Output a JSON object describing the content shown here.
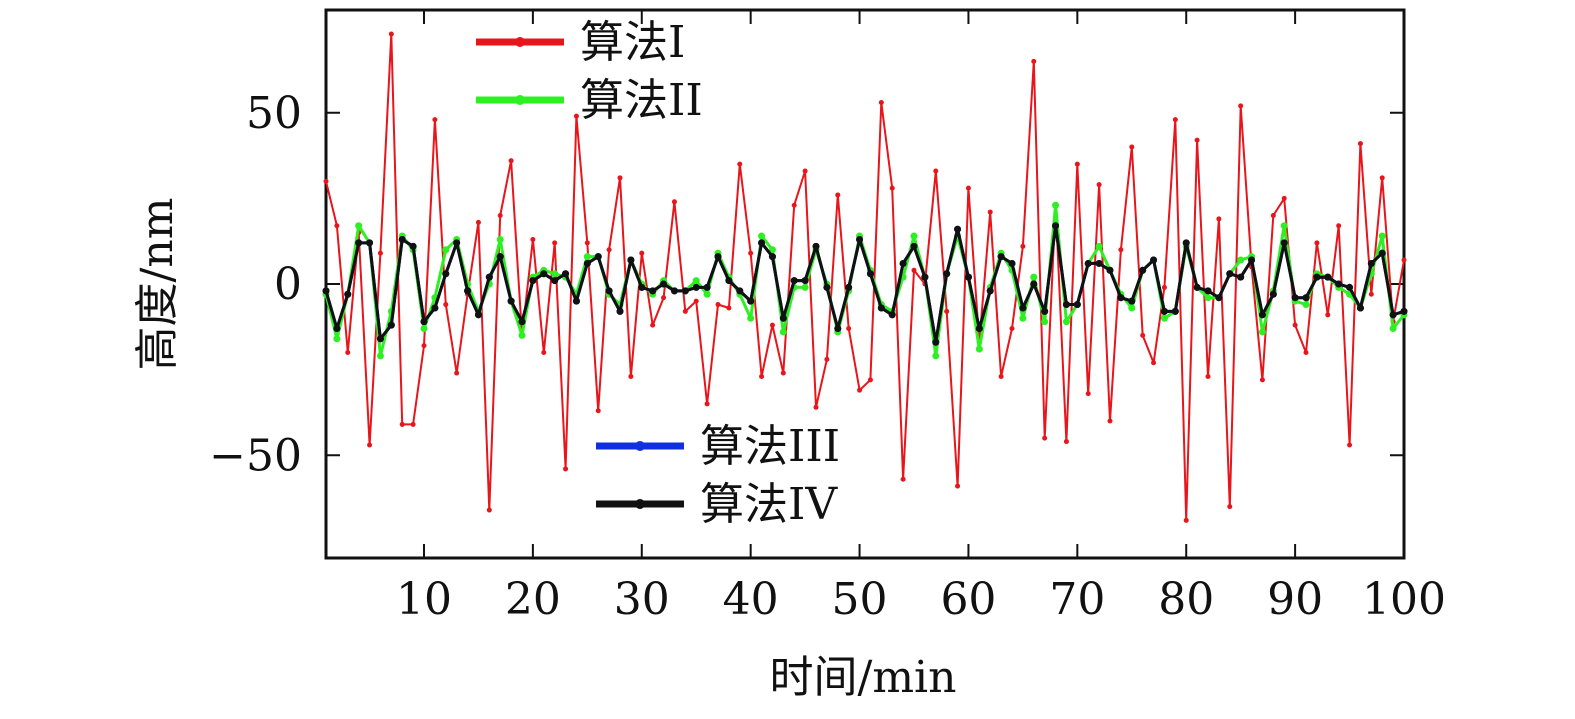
{
  "chart_data": {
    "type": "line",
    "xlabel": "时间/min",
    "ylabel": "高度/nm",
    "xlim": [
      1,
      100
    ],
    "ylim": [
      -80,
      80
    ],
    "xticks": [
      10,
      20,
      30,
      40,
      50,
      60,
      70,
      80,
      90,
      100
    ],
    "yticks": [
      -50,
      0,
      50
    ],
    "ytick_labels": [
      "−50",
      "0",
      "50"
    ],
    "grid": false,
    "x": [
      1,
      2,
      3,
      4,
      5,
      6,
      7,
      8,
      9,
      10,
      11,
      12,
      13,
      14,
      15,
      16,
      17,
      18,
      19,
      20,
      21,
      22,
      23,
      24,
      25,
      26,
      27,
      28,
      29,
      30,
      31,
      32,
      33,
      34,
      35,
      36,
      37,
      38,
      39,
      40,
      41,
      42,
      43,
      44,
      45,
      46,
      47,
      48,
      49,
      50,
      51,
      52,
      53,
      54,
      55,
      56,
      57,
      58,
      59,
      60,
      61,
      62,
      63,
      64,
      65,
      66,
      67,
      68,
      69,
      70,
      71,
      72,
      73,
      74,
      75,
      76,
      77,
      78,
      79,
      80,
      81,
      82,
      83,
      84,
      85,
      86,
      87,
      88,
      89,
      90,
      91,
      92,
      93,
      94,
      95,
      96,
      97,
      98,
      99,
      100
    ],
    "series": [
      {
        "name": "算法I",
        "color": "#e8151b",
        "width": 2,
        "values": [
          30,
          17,
          -20,
          15,
          -47,
          9,
          73,
          -41,
          -41,
          -18,
          48,
          -6,
          -26,
          -3,
          18,
          -66,
          20,
          36,
          -15,
          13,
          -20,
          12,
          -54,
          49,
          12,
          -37,
          10,
          31,
          -27,
          9,
          -12,
          -4,
          24,
          -8,
          -5,
          -35,
          -6,
          -7,
          35,
          9,
          -27,
          -12,
          -26,
          23,
          33,
          -36,
          -22,
          26,
          -13,
          -31,
          -28,
          53,
          28,
          -57,
          4,
          0,
          33,
          -8,
          -59,
          28,
          -17,
          21,
          -27,
          -13,
          11,
          65,
          -45,
          23,
          -46,
          35,
          -32,
          29,
          -40,
          10,
          40,
          -15,
          -23,
          -1,
          48,
          -69,
          42,
          -27,
          19,
          -65,
          52,
          5,
          -28,
          20,
          25,
          -12,
          -20,
          12,
          -9,
          17,
          -47,
          41,
          -3,
          31,
          -11,
          7
        ]
      },
      {
        "name": "算法II",
        "color": "#2df020",
        "width": 3,
        "values": [
          -3,
          -16,
          -3,
          17,
          12,
          -21,
          -8,
          14,
          10,
          -13,
          -4,
          10,
          13,
          0,
          -8,
          0,
          13,
          -5,
          -15,
          2,
          4,
          3,
          2,
          -3,
          8,
          8,
          -3,
          -6,
          7,
          0,
          -3,
          1,
          -2,
          -2,
          1,
          -3,
          9,
          2,
          -3,
          -10,
          14,
          10,
          -14,
          -1,
          -1,
          10,
          0,
          -14,
          -2,
          14,
          4,
          -6,
          -8,
          2,
          14,
          2,
          -21,
          3,
          14,
          2,
          -19,
          -1,
          9,
          4,
          -10,
          2,
          -11,
          23,
          -11,
          -6,
          6,
          11,
          4,
          -3,
          -7,
          4,
          7,
          -10,
          -8,
          11,
          -1,
          -4,
          -4,
          3,
          7,
          8,
          -14,
          -2,
          17,
          -5,
          -6,
          3,
          2,
          -1,
          -3,
          -7,
          3,
          14,
          -13,
          -9
        ]
      },
      {
        "name": "算法III",
        "color": "#1030e0",
        "width": 3,
        "values": [
          -2,
          -13,
          -3,
          12,
          12,
          -16,
          -12,
          13,
          11,
          -11,
          -7,
          3,
          12,
          -2,
          -9,
          2,
          8,
          -5,
          -11,
          1,
          3,
          1,
          3,
          -5,
          6,
          8,
          -2,
          -8,
          7,
          -1,
          -2,
          0,
          -2,
          -2,
          -1,
          -1,
          8,
          1,
          -2,
          -5,
          12,
          8,
          -10,
          1,
          1,
          11,
          -1,
          -13,
          -1,
          13,
          3,
          -7,
          -9,
          6,
          11,
          2,
          -17,
          3,
          16,
          2,
          -13,
          -2,
          8,
          6,
          -7,
          0,
          -8,
          17,
          -6,
          -6,
          6,
          6,
          4,
          -4,
          -5,
          4,
          7,
          -8,
          -8,
          12,
          -1,
          -2,
          -4,
          3,
          2,
          7,
          -9,
          -3,
          12,
          -4,
          -4,
          2,
          2,
          0,
          -1,
          -7,
          6,
          9,
          -9,
          -8
        ]
      },
      {
        "name": "算法IV",
        "color": "#111111",
        "width": 3,
        "values": [
          -2,
          -13,
          -3,
          12,
          12,
          -16,
          -12,
          13,
          11,
          -11,
          -7,
          3,
          12,
          -2,
          -9,
          2,
          8,
          -5,
          -11,
          1,
          3,
          1,
          3,
          -5,
          6,
          8,
          -2,
          -8,
          7,
          -1,
          -2,
          0,
          -2,
          -2,
          -1,
          -1,
          8,
          1,
          -2,
          -5,
          12,
          8,
          -10,
          1,
          1,
          11,
          -1,
          -13,
          -1,
          13,
          3,
          -7,
          -9,
          6,
          11,
          2,
          -17,
          3,
          16,
          2,
          -13,
          -2,
          8,
          6,
          -7,
          0,
          -8,
          17,
          -6,
          -6,
          6,
          6,
          4,
          -4,
          -5,
          4,
          7,
          -8,
          -8,
          12,
          -1,
          -2,
          -4,
          3,
          2,
          7,
          -9,
          -3,
          12,
          -4,
          -4,
          2,
          2,
          0,
          -1,
          -7,
          6,
          9,
          -9,
          -8
        ]
      }
    ],
    "legends": [
      {
        "entries": [
          "算法I",
          "算法II"
        ],
        "placement": "top-left"
      },
      {
        "entries": [
          "算法III",
          "算法IV"
        ],
        "placement": "bottom-center"
      }
    ]
  }
}
